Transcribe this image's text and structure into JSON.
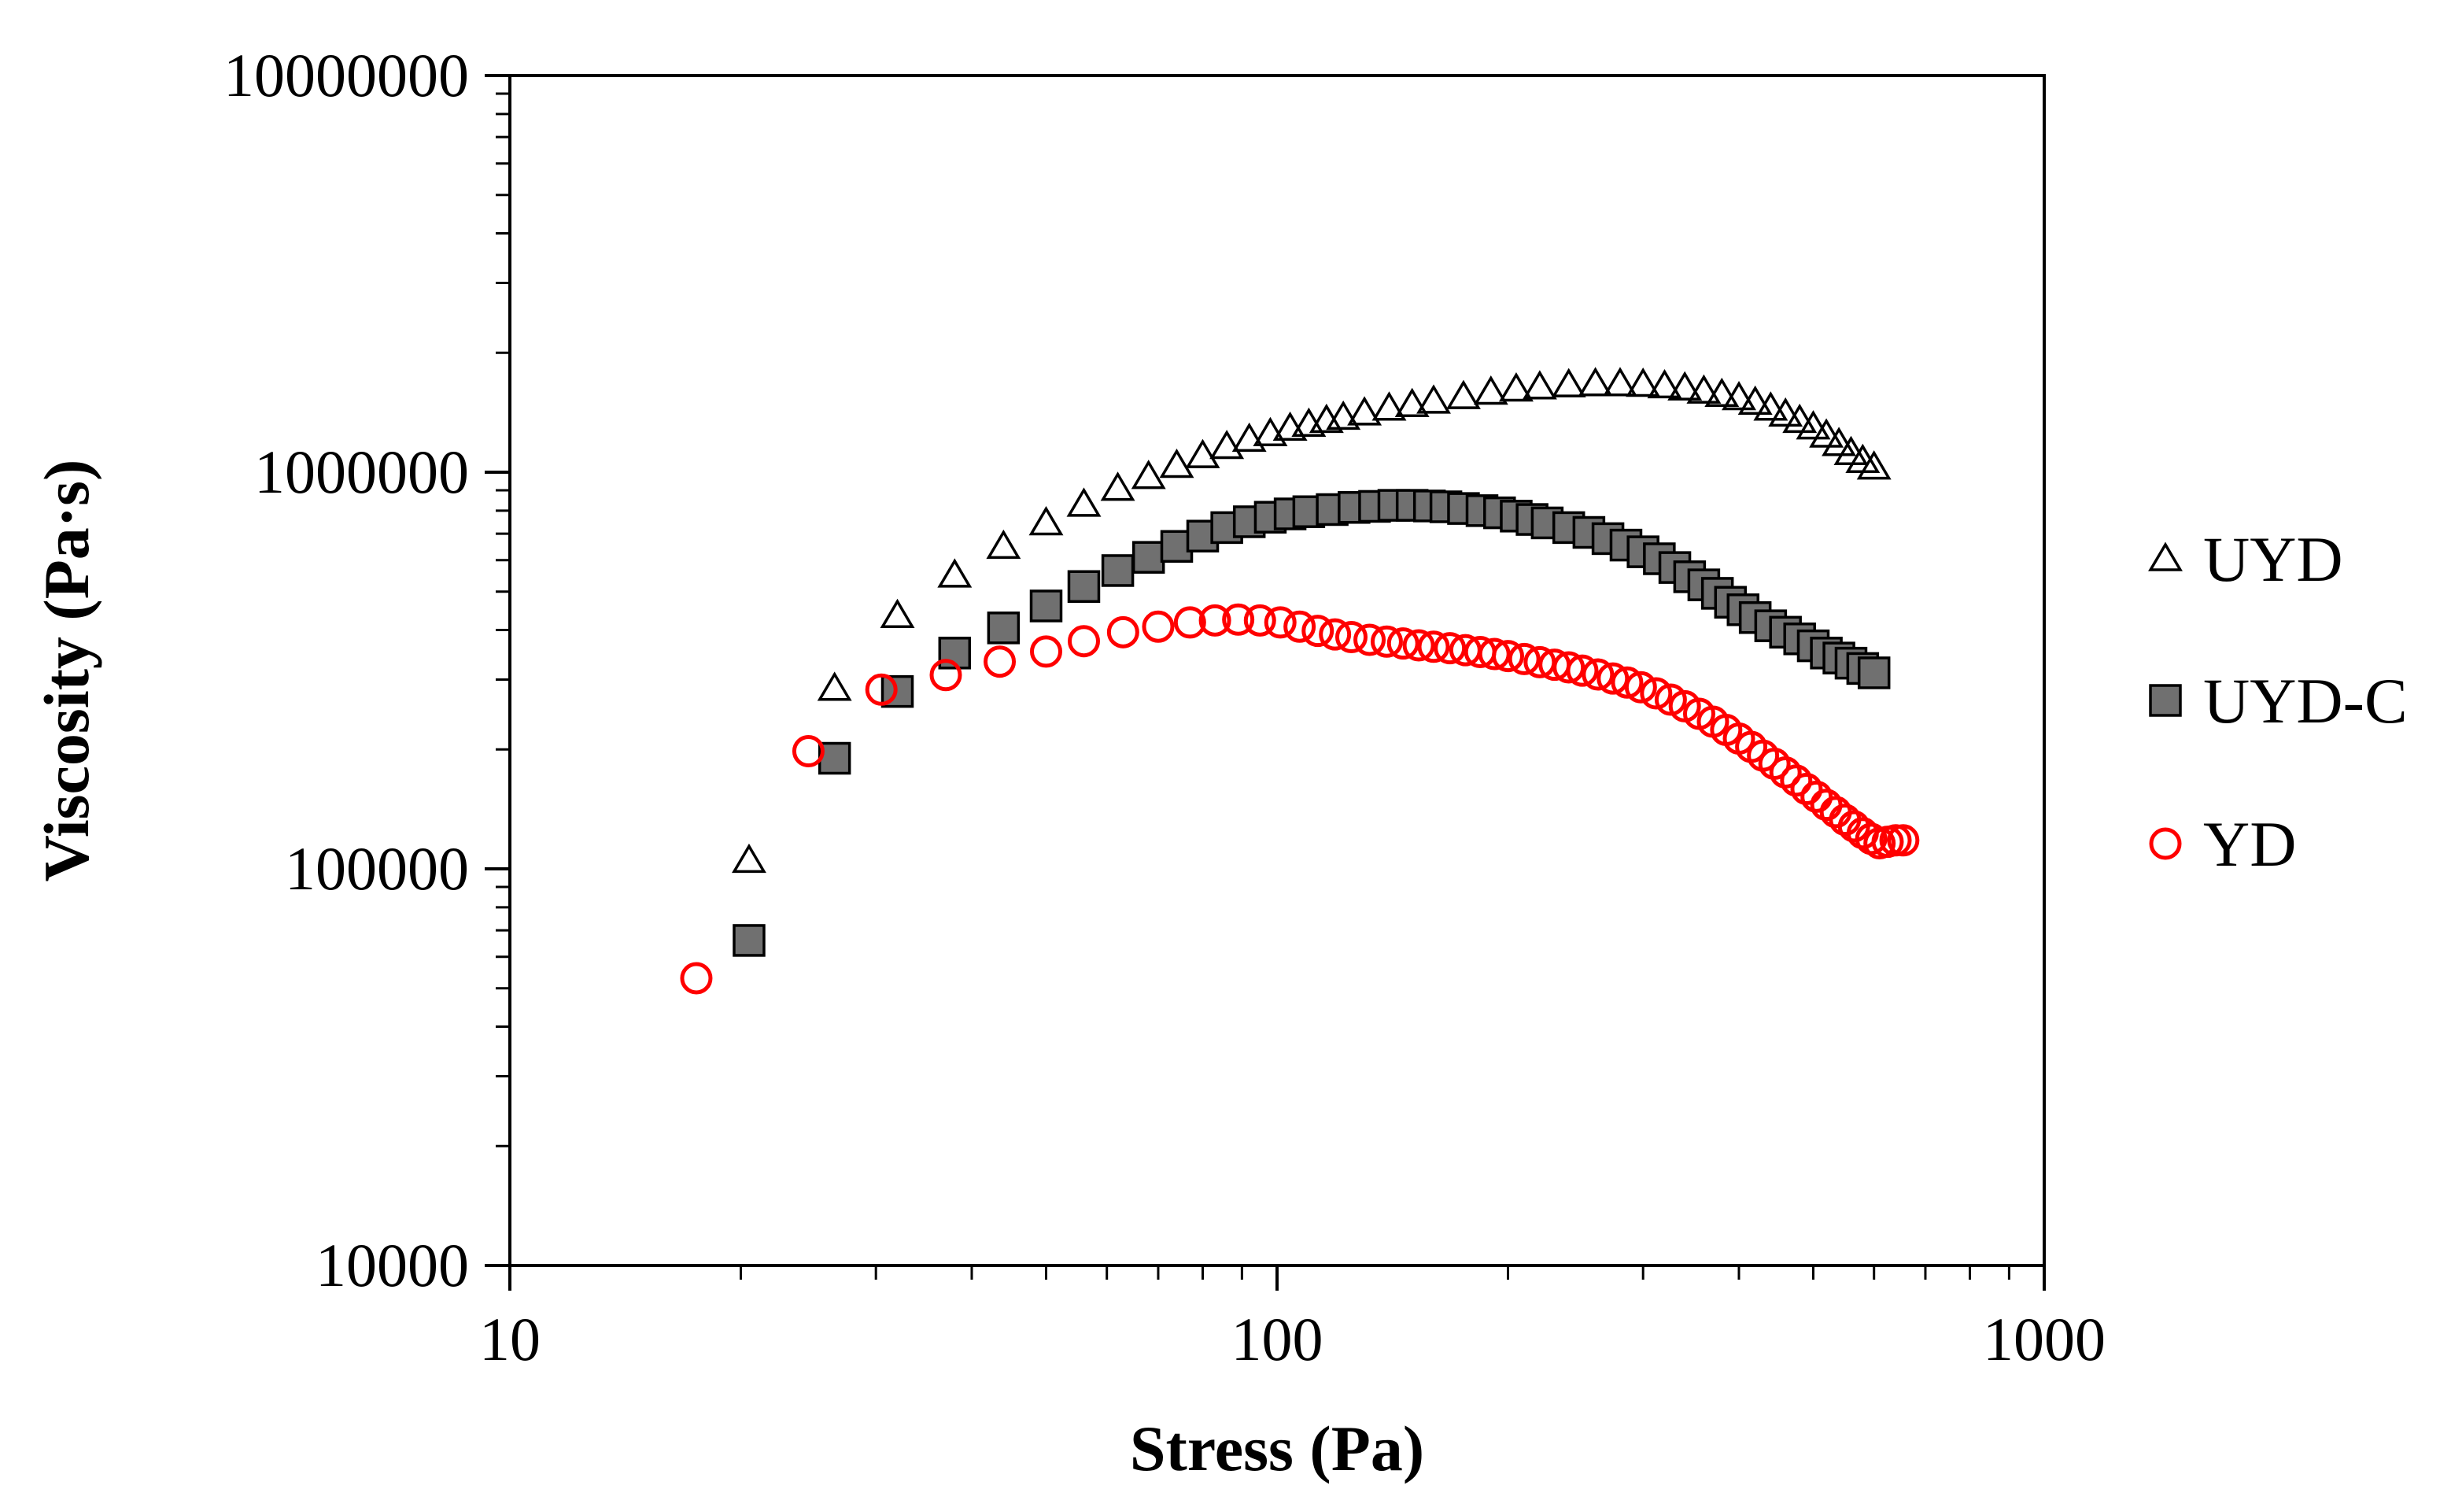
{
  "chart_data": {
    "type": "scatter",
    "title": "",
    "xlabel": "Stress (Pa)",
    "ylabel": "Viscosity (Pa·s)",
    "xscale": "log",
    "yscale": "log",
    "xlim": [
      10,
      1000
    ],
    "ylim": [
      10000,
      10000000
    ],
    "x_ticks": [
      10,
      100,
      1000
    ],
    "x_tick_labels": [
      "10",
      "100",
      "1000"
    ],
    "y_ticks": [
      10000,
      100000,
      1000000,
      10000000
    ],
    "y_tick_labels": [
      "10000",
      "100000",
      "1000000",
      "10000000"
    ],
    "grid": false,
    "legend_position": "right",
    "series": [
      {
        "name": "UYD",
        "marker": "triangle-open",
        "color": "#000000",
        "fill": "none",
        "x": [
          20.5,
          26.5,
          32,
          38,
          44,
          50,
          56,
          62,
          68,
          74,
          80,
          86,
          92,
          98,
          104,
          110,
          116,
          122,
          130,
          140,
          150,
          160,
          175,
          190,
          205,
          220,
          240,
          260,
          280,
          300,
          320,
          340,
          360,
          380,
          400,
          420,
          440,
          460,
          480,
          500,
          520,
          540,
          560,
          580,
          600
        ],
        "y": [
          105000,
          285000,
          435000,
          550000,
          650000,
          745000,
          830000,
          910000,
          975000,
          1040000,
          1100000,
          1160000,
          1210000,
          1250000,
          1290000,
          1320000,
          1350000,
          1375000,
          1410000,
          1450000,
          1480000,
          1510000,
          1550000,
          1590000,
          1620000,
          1640000,
          1660000,
          1670000,
          1670000,
          1665000,
          1650000,
          1630000,
          1600000,
          1570000,
          1540000,
          1500000,
          1450000,
          1400000,
          1350000,
          1300000,
          1240000,
          1180000,
          1120000,
          1070000,
          1030000
        ]
      },
      {
        "name": "UYD-C",
        "marker": "square",
        "color": "#000000",
        "fill": "#707070",
        "x": [
          20.5,
          26.5,
          32,
          38,
          44,
          50,
          56,
          62,
          68,
          74,
          80,
          86,
          92,
          98,
          104,
          110,
          118,
          126,
          134,
          142,
          150,
          158,
          166,
          175,
          185,
          195,
          205,
          215,
          225,
          240,
          255,
          270,
          285,
          300,
          315,
          330,
          345,
          360,
          375,
          390,
          405,
          420,
          440,
          460,
          480,
          500,
          520,
          540,
          560,
          580,
          600
        ],
        "y": [
          66000,
          190000,
          280000,
          350000,
          405000,
          460000,
          515000,
          565000,
          610000,
          650000,
          690000,
          725000,
          750000,
          770000,
          785000,
          795000,
          805000,
          815000,
          820000,
          825000,
          825000,
          822000,
          818000,
          810000,
          800000,
          790000,
          775000,
          760000,
          745000,
          725000,
          705000,
          680000,
          655000,
          630000,
          605000,
          575000,
          545000,
          520000,
          495000,
          470000,
          450000,
          430000,
          410000,
          395000,
          380000,
          365000,
          350000,
          340000,
          330000,
          320000,
          312000
        ]
      },
      {
        "name": "YD",
        "marker": "circle-open",
        "color": "#ff0000",
        "fill": "none",
        "x": [
          17.5,
          24.5,
          30.5,
          37,
          43.5,
          50,
          56,
          63,
          70,
          77,
          83,
          89,
          95,
          101,
          107,
          113,
          119,
          125,
          132,
          139,
          146,
          153,
          160,
          168,
          176,
          184,
          192,
          200,
          210,
          220,
          230,
          240,
          250,
          262,
          274,
          286,
          298,
          312,
          326,
          340,
          355,
          370,
          385,
          400,
          415,
          430,
          445,
          460,
          475,
          490,
          505,
          520,
          535,
          550,
          565,
          580,
          595,
          610,
          625,
          640,
          655
        ],
        "y": [
          53000,
          198000,
          283000,
          308000,
          333000,
          353000,
          375000,
          395000,
          408000,
          418000,
          423000,
          425000,
          423000,
          418000,
          408000,
          398000,
          390000,
          384000,
          378000,
          374000,
          370000,
          366000,
          363000,
          360000,
          356000,
          352000,
          348000,
          344000,
          338000,
          332000,
          327000,
          322000,
          316000,
          309000,
          302000,
          295000,
          287000,
          277000,
          267000,
          257000,
          246000,
          235000,
          224000,
          213000,
          203000,
          193000,
          184000,
          175000,
          167000,
          159000,
          152000,
          145000,
          139000,
          133000,
          128000,
          123000,
          119000,
          116000,
          117000,
          118000,
          118000
        ]
      }
    ]
  }
}
